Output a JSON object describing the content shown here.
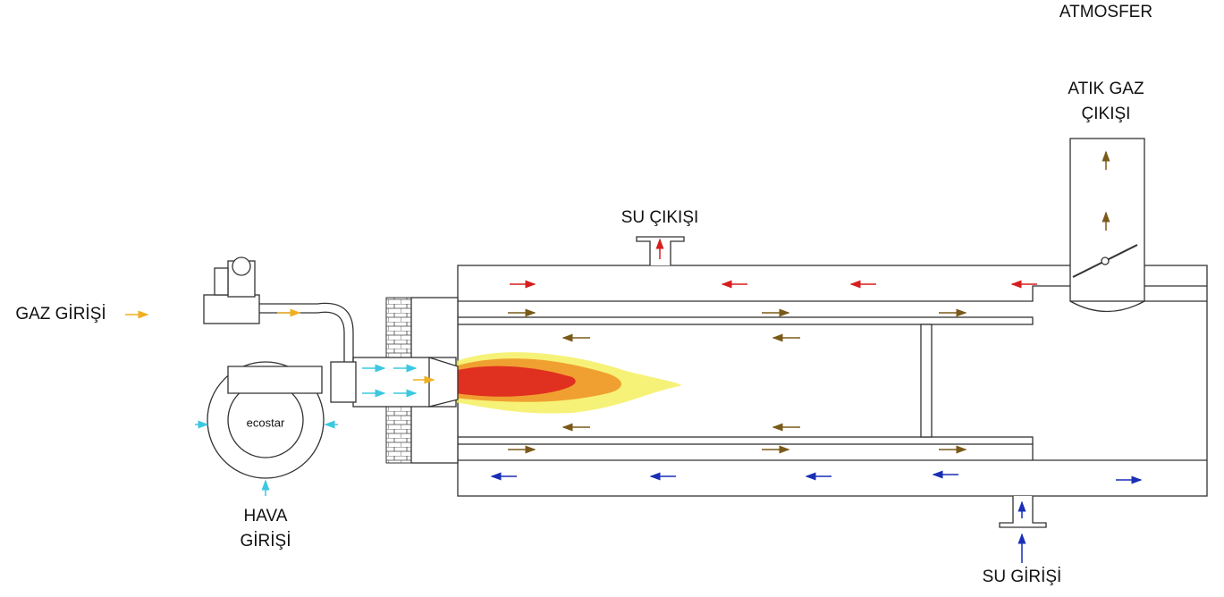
{
  "labels": {
    "atmosphere": "ATMOSFER",
    "exhaust_outlet": [
      "ATIK GAZ",
      "ÇIKIŞI"
    ],
    "water_outlet": "SU ÇIKIŞI",
    "gas_inlet": "GAZ GİRİŞİ",
    "air_inlet": [
      "HAVA",
      "GİRİŞİ"
    ],
    "water_inlet": "SU GİRİŞİ"
  }
}
